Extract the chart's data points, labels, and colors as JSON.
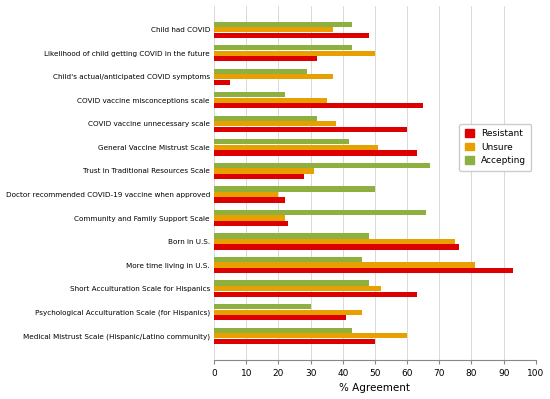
{
  "categories": [
    "Child had COVID",
    "Likelihood of child getting COVID in the future",
    "Child's actual/anticipated COVID symptoms",
    "COVID vaccine misconceptions scale",
    "COVID vaccine unnecessary scale",
    "General Vaccine Mistrust Scale",
    "Trust in Traditional Resources Scale",
    "Doctor recommended COVID-19 vaccine when approved",
    "Community and Family Support Scale",
    "Born in U.S.",
    "More time living in U.S.",
    "Short Acculturation Scale for Hispanics",
    "Psychological Acculturation Scale (for Hispanics)",
    "Medical Mistrust Scale (Hispanic/Latino community)"
  ],
  "resistant": [
    48,
    32,
    5,
    65,
    60,
    63,
    28,
    22,
    23,
    76,
    93,
    63,
    41,
    50
  ],
  "unsure": [
    37,
    50,
    37,
    35,
    38,
    51,
    31,
    20,
    22,
    75,
    81,
    52,
    46,
    60
  ],
  "accepting": [
    43,
    43,
    29,
    22,
    32,
    42,
    67,
    50,
    66,
    48,
    46,
    48,
    30,
    43
  ],
  "colors": {
    "resistant": "#dd0000",
    "unsure": "#e8a000",
    "accepting": "#8db040"
  },
  "xlabel": "% Agreement",
  "xlim": [
    0,
    100
  ],
  "xticks": [
    0,
    10,
    20,
    30,
    40,
    50,
    60,
    70,
    80,
    90,
    100
  ]
}
